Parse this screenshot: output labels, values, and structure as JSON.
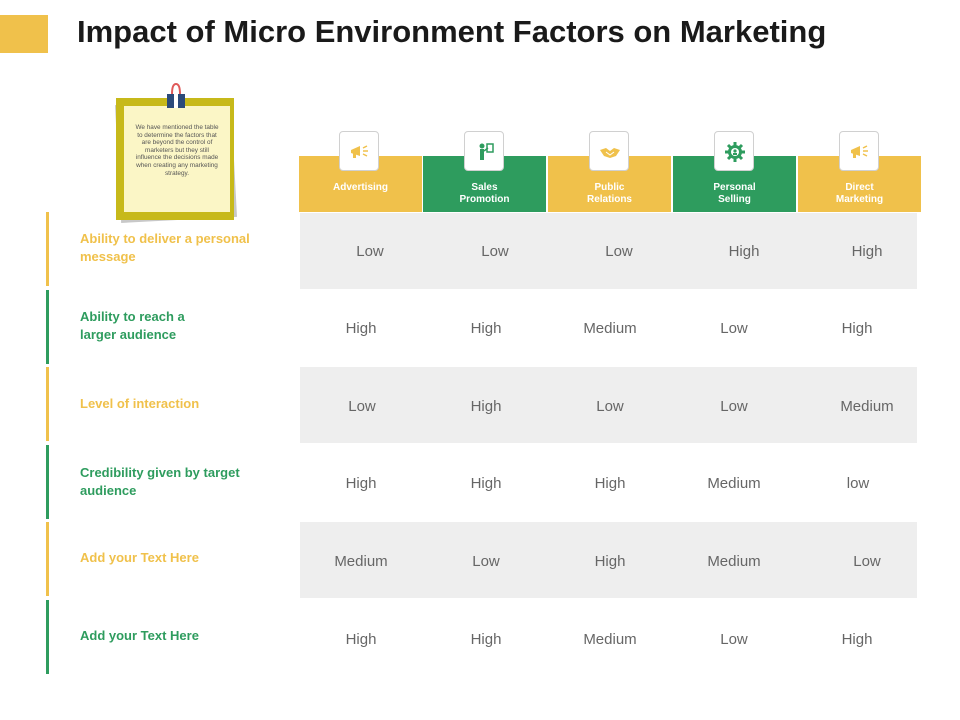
{
  "title": "Impact of Micro Environment Factors on Marketing",
  "note": {
    "text": "We have mentioned the table to determine the factors that are beyond the control of marketers but they still influence the decisions made when creating any marketing strategy."
  },
  "colors": {
    "yellow": "#f0c14b",
    "green": "#2e9c5e",
    "row_shade": "#eeeeee"
  },
  "columns": [
    {
      "label_line1": "Advertising",
      "label_line2": "",
      "icon": "megaphone-icon",
      "color": "yellow"
    },
    {
      "label_line1": "Sales",
      "label_line2": "Promotion",
      "icon": "presenter-icon",
      "color": "green"
    },
    {
      "label_line1": "Public",
      "label_line2": "Relations",
      "icon": "handshake-icon",
      "color": "yellow"
    },
    {
      "label_line1": "Personal",
      "label_line2": "Selling",
      "icon": "gear-person-icon",
      "color": "green"
    },
    {
      "label_line1": "Direct",
      "label_line2": "Marketing",
      "icon": "megaphone-icon",
      "color": "yellow"
    }
  ],
  "rows": [
    {
      "label_line1": "Ability  to deliver a personal",
      "label_line2": "message",
      "values": [
        "Low",
        "Low",
        "Low",
        "High",
        "High"
      ]
    },
    {
      "label_line1": "Ability  to reach a",
      "label_line2": "larger audience",
      "values": [
        "High",
        "High",
        "Medium",
        "Low",
        "High"
      ]
    },
    {
      "label_line1": "Level of interaction",
      "label_line2": "",
      "values": [
        "Low",
        "High",
        "Low",
        "Low",
        "Medium"
      ]
    },
    {
      "label_line1": "Credibility given by target",
      "label_line2": "audience",
      "values": [
        "High",
        "High",
        "High",
        "Medium",
        "low"
      ]
    },
    {
      "label_line1": "Add  your Text Here",
      "label_line2": "",
      "values": [
        "Medium",
        "Low",
        "High",
        "Medium",
        "Low"
      ]
    },
    {
      "label_line1": "Add  your Text Here",
      "label_line2": "",
      "values": [
        "High",
        "High",
        "Medium",
        "Low",
        "High"
      ]
    }
  ]
}
